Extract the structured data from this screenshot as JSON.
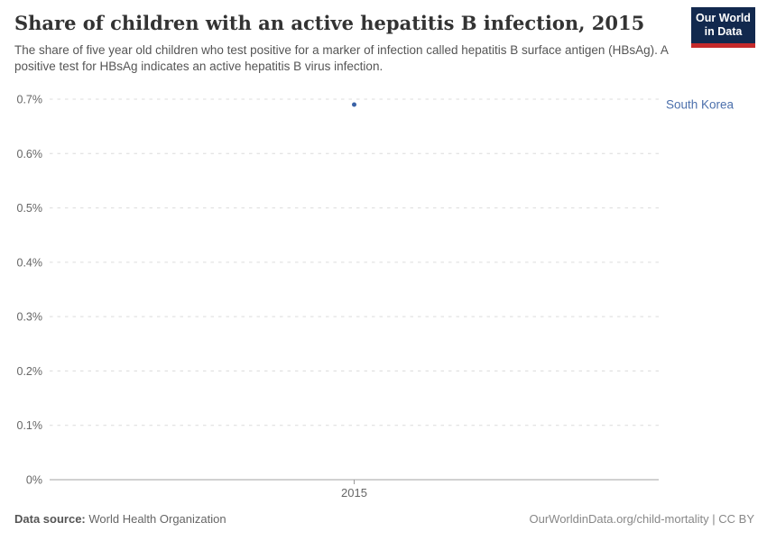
{
  "header": {
    "title": "Share of children with an active hepatitis B infection, 2015",
    "subtitle": "The share of five year old children who test positive for a marker of infection called hepatitis B surface antigen (HBsAg). A positive test for HBsAg indicates an active hepatitis B virus infection.",
    "logo": {
      "line1": "Our World",
      "line2": "in Data"
    }
  },
  "chart_data": {
    "type": "scatter",
    "title": "Share of children with an active hepatitis B infection, 2015",
    "series": [
      {
        "name": "South Korea",
        "points": [
          {
            "x": 2015,
            "y": 0.69
          }
        ]
      }
    ],
    "x_ticks": [
      "2015"
    ],
    "y_ticks": [
      0,
      0.1,
      0.2,
      0.3,
      0.4,
      0.5,
      0.6,
      0.7
    ],
    "y_tick_labels": [
      "0%",
      "0.1%",
      "0.2%",
      "0.3%",
      "0.4%",
      "0.5%",
      "0.6%",
      "0.7%"
    ],
    "ylim": [
      0,
      0.7
    ],
    "xlabel": "",
    "ylabel": "",
    "grid": "horizontal-dashed",
    "legend": "entity-label-right"
  },
  "colors": {
    "point": "#3a62a6",
    "entity_label": "#4c70ac",
    "grid": "#dcdcdc",
    "axis": "#a3a3a3",
    "tick": "#999999",
    "tick_text": "#666666",
    "logo_bg": "#12294e",
    "logo_red": "#c52a2b"
  },
  "footer": {
    "datasource_label": "Data source:",
    "datasource_value": "World Health Organization",
    "credit": "OurWorldinData.org/child-mortality | CC BY"
  }
}
